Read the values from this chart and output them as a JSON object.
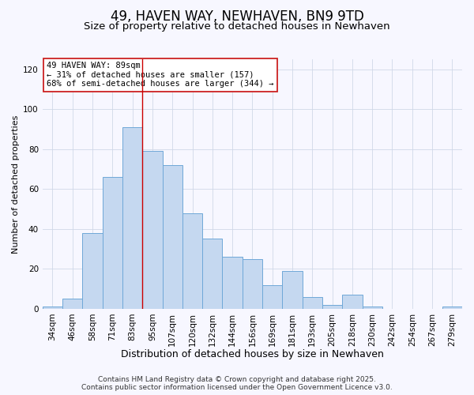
{
  "title": "49, HAVEN WAY, NEWHAVEN, BN9 9TD",
  "subtitle": "Size of property relative to detached houses in Newhaven",
  "xlabel": "Distribution of detached houses by size in Newhaven",
  "ylabel": "Number of detached properties",
  "bar_labels": [
    "34sqm",
    "46sqm",
    "58sqm",
    "71sqm",
    "83sqm",
    "95sqm",
    "107sqm",
    "120sqm",
    "132sqm",
    "144sqm",
    "156sqm",
    "169sqm",
    "181sqm",
    "193sqm",
    "205sqm",
    "218sqm",
    "230sqm",
    "242sqm",
    "254sqm",
    "267sqm",
    "279sqm"
  ],
  "bar_values": [
    1,
    5,
    38,
    66,
    91,
    79,
    72,
    48,
    35,
    26,
    25,
    12,
    19,
    6,
    2,
    7,
    1,
    0,
    0,
    0,
    1
  ],
  "bar_color": "#c5d8f0",
  "bar_edge_color": "#6fa8d8",
  "ylim": [
    0,
    125
  ],
  "yticks": [
    0,
    20,
    40,
    60,
    80,
    100,
    120
  ],
  "vline_color": "#cc0000",
  "vline_x_index": 4,
  "annotation_title": "49 HAVEN WAY: 89sqm",
  "annotation_line1": "← 31% of detached houses are smaller (157)",
  "annotation_line2": "68% of semi-detached houses are larger (344) →",
  "footer1": "Contains HM Land Registry data © Crown copyright and database right 2025.",
  "footer2": "Contains public sector information licensed under the Open Government Licence v3.0.",
  "bg_color": "#f7f7ff",
  "grid_color": "#d0d8e8",
  "title_fontsize": 12,
  "subtitle_fontsize": 9.5,
  "xlabel_fontsize": 9,
  "ylabel_fontsize": 8,
  "tick_fontsize": 7.5,
  "footer_fontsize": 6.5
}
